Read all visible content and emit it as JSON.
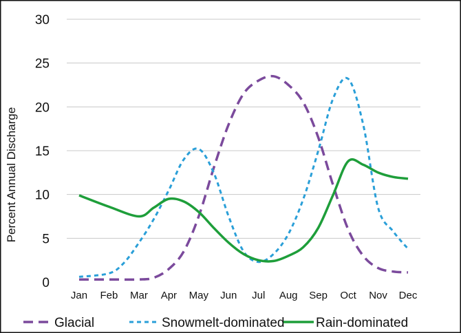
{
  "chart_data": {
    "type": "line",
    "title": "",
    "ylabel": "Percent Annual Discharge",
    "xlabel": "",
    "ylim": [
      0,
      30
    ],
    "yticks": [
      0,
      5,
      10,
      15,
      20,
      25,
      30
    ],
    "grid": "horizontal",
    "legend_position": "bottom",
    "categories": [
      "Jan",
      "Feb",
      "Mar",
      "Apr",
      "May",
      "Jun",
      "Jul",
      "Aug",
      "Sep",
      "Oct",
      "Nov",
      "Dec"
    ],
    "series": [
      {
        "name": "Glacial",
        "color": "#7b4a9c",
        "style": "dashed",
        "x": [
          0,
          1,
          2,
          2.5,
          3,
          3.5,
          4,
          4.5,
          5,
          5.5,
          6,
          6.5,
          7,
          7.5,
          8,
          8.5,
          9,
          9.5,
          10,
          10.5,
          11
        ],
        "values": [
          0.3,
          0.3,
          0.3,
          0.5,
          1.5,
          3.5,
          7.5,
          13,
          18,
          21.5,
          23,
          23.5,
          22.5,
          20.5,
          16.5,
          11,
          6,
          3,
          1.6,
          1.2,
          1.1
        ]
      },
      {
        "name": "Snowmelt-dominated",
        "color": "#2a9fd8",
        "style": "dotted",
        "x": [
          0,
          1,
          1.5,
          2,
          2.5,
          3,
          3.5,
          4,
          4.5,
          5,
          5.5,
          6,
          6.5,
          7,
          7.5,
          8,
          8.5,
          9,
          9.5,
          10,
          10.5,
          11
        ],
        "values": [
          0.6,
          1.0,
          2.2,
          4.5,
          7.2,
          10.5,
          14,
          15.2,
          12.5,
          7.5,
          3.5,
          2.3,
          3.2,
          5.5,
          9.5,
          15,
          21,
          23.2,
          18,
          8.5,
          5.8,
          3.8
        ]
      },
      {
        "name": "Rain-dominated",
        "color": "#1e9e3a",
        "style": "solid",
        "x": [
          0,
          1,
          2,
          2.5,
          3,
          3.5,
          4,
          4.5,
          5,
          5.5,
          6,
          6.5,
          7,
          7.5,
          8,
          8.5,
          9,
          9.5,
          10,
          10.5,
          11
        ],
        "values": [
          9.9,
          8.6,
          7.5,
          8.5,
          9.5,
          9.2,
          8.0,
          6.2,
          4.5,
          3.2,
          2.5,
          2.4,
          3.0,
          4.0,
          6.2,
          10,
          13.8,
          13.4,
          12.5,
          12.0,
          11.8
        ]
      }
    ]
  }
}
